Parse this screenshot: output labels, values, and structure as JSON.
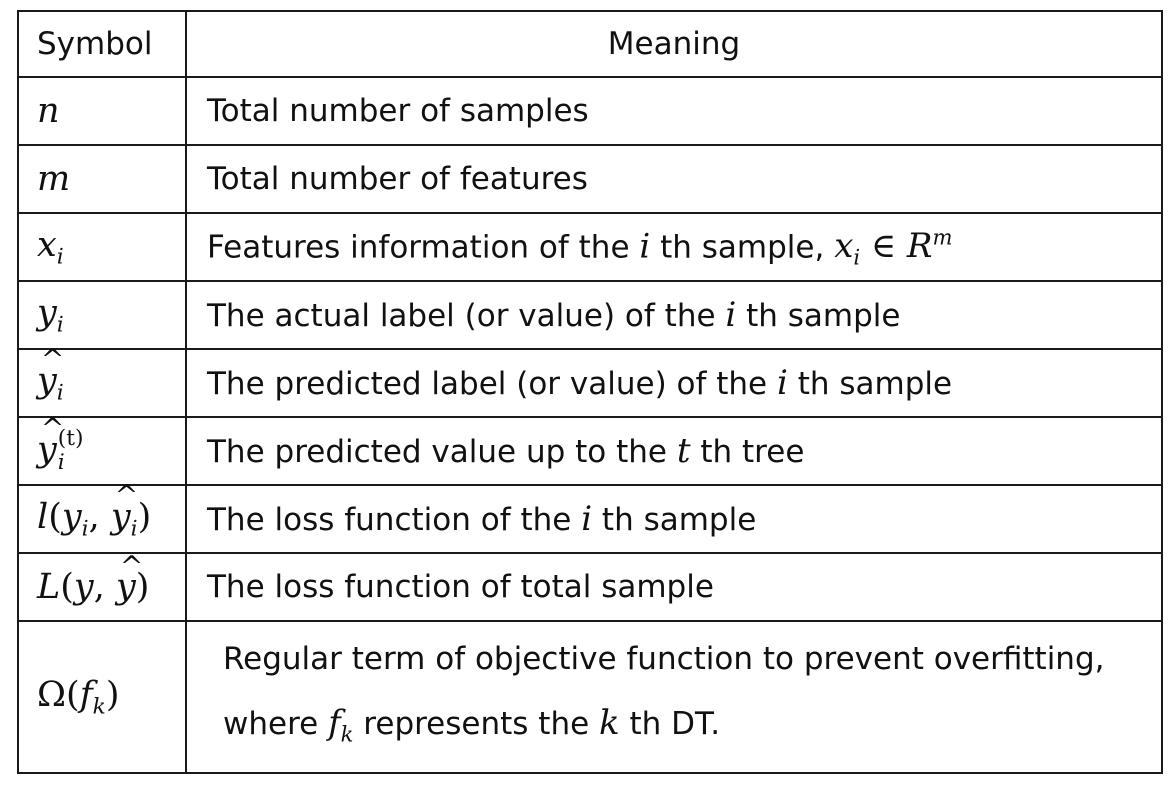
{
  "header": {
    "symbol": "Symbol",
    "meaning": "Meaning"
  },
  "rows": [
    {
      "symbol": "n",
      "meaning": "Total number of samples"
    },
    {
      "symbol": "m",
      "meaning": "Total number of features"
    },
    {
      "symbol": "x_i",
      "meaning_before": "Features information of the ",
      "var": "i",
      "meaning_after": " th sample, ",
      "expr": "x_i ∈ R^m"
    },
    {
      "symbol": "y_i",
      "meaning_before": "The actual label (or value) of the ",
      "var": "i",
      "meaning_after": " th sample"
    },
    {
      "symbol": "ŷ_i",
      "meaning_before": "The predicted label (or value) of the ",
      "var": "i",
      "meaning_after": " th sample"
    },
    {
      "symbol": "ŷ_i^(t)",
      "meaning_before": "The predicted value up to the ",
      "var": "t",
      "meaning_after": " th tree"
    },
    {
      "symbol": "l(y_i, ŷ_i)",
      "meaning_before": "The loss function of the ",
      "var": "i",
      "meaning_after": " th sample"
    },
    {
      "symbol": "L(y, ŷ)",
      "meaning": "The loss function of total sample"
    },
    {
      "symbol": "Ω(f_k)",
      "line1": "Regular term of objective function to prevent overfitting,",
      "line2_before": "where ",
      "line2_var": "f_k",
      "line2_mid": " represents the ",
      "line2_var2": "k",
      "line2_after": " th DT."
    }
  ]
}
